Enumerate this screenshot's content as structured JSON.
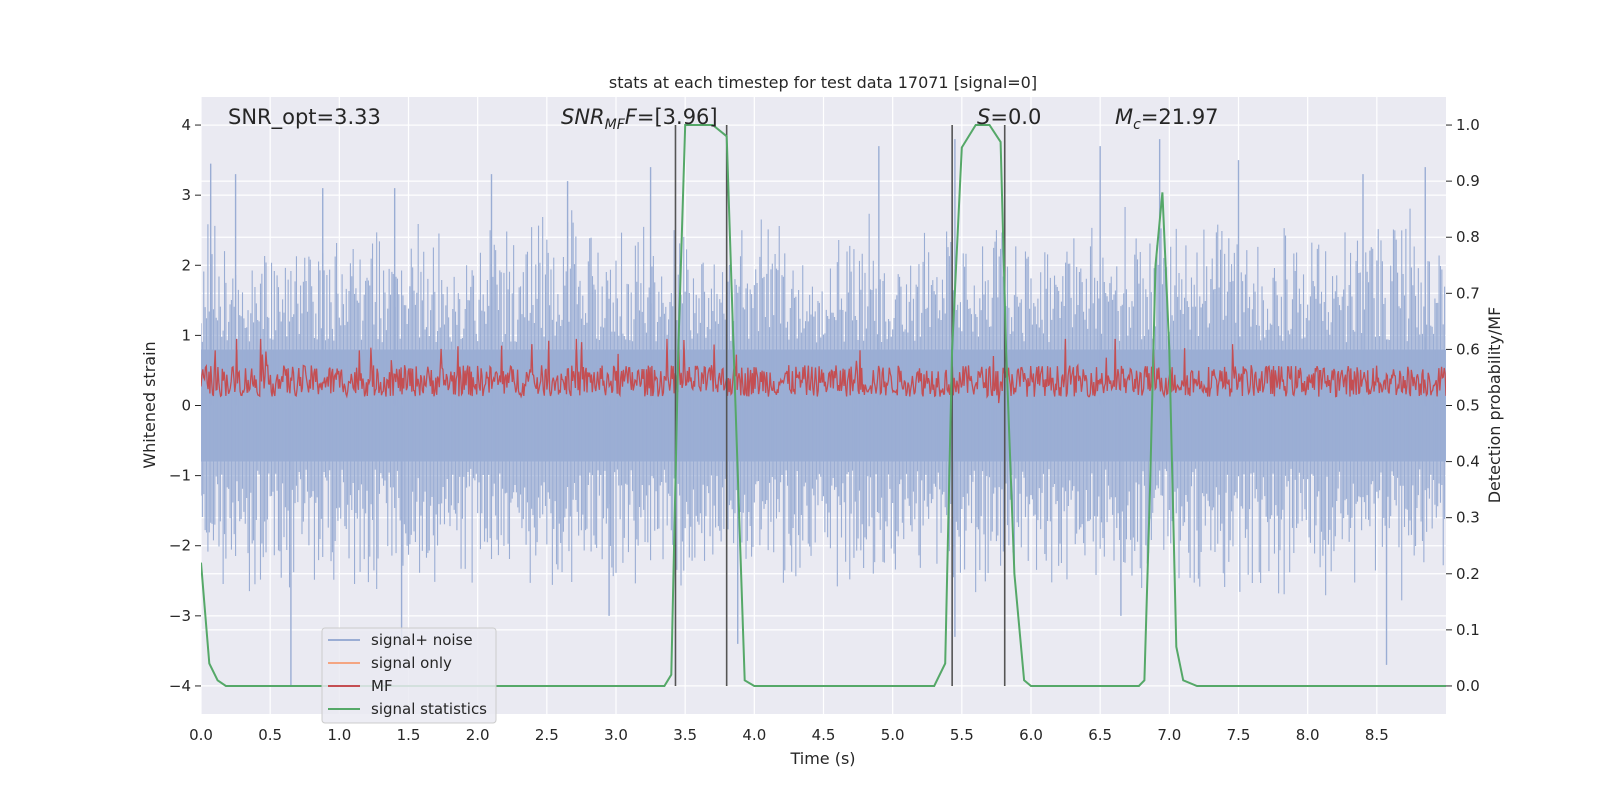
{
  "chart_data": {
    "type": "line",
    "title": "stats at each timestep for test data 17071 [signal=0]",
    "xlabel": "Time (s)",
    "ylabel": "Whitened strain",
    "ylabel_right": "Detection probability/MF",
    "xlim": [
      0,
      9
    ],
    "ylim": [
      -4.4,
      4.4
    ],
    "ylim_right": [
      -0.05,
      1.05
    ],
    "x_ticks": [
      0.0,
      0.5,
      1.0,
      1.5,
      2.0,
      2.5,
      3.0,
      3.5,
      4.0,
      4.5,
      5.0,
      5.5,
      6.0,
      6.5,
      7.0,
      7.5,
      8.0,
      8.5
    ],
    "x_tick_labels": [
      "0.0",
      "0.5",
      "1.0",
      "1.5",
      "2.0",
      "2.5",
      "3.0",
      "3.5",
      "4.0",
      "4.5",
      "5.0",
      "5.5",
      "6.0",
      "6.5",
      "7.0",
      "7.5",
      "8.0",
      "8.5"
    ],
    "y_ticks": [
      4,
      3,
      2,
      1,
      0,
      -1,
      -2,
      -3,
      -4
    ],
    "y_tick_labels": [
      "4",
      "3",
      "2",
      "1",
      "0",
      "−1",
      "−2",
      "−3",
      "−4"
    ],
    "y_right_ticks": [
      1.0,
      0.9,
      0.8,
      0.7,
      0.6,
      0.5,
      0.4,
      0.3,
      0.2,
      0.1,
      0.0
    ],
    "y_right_tick_labels": [
      "1.0",
      "0.9",
      "0.8",
      "0.7",
      "0.6",
      "0.5",
      "0.4",
      "0.3",
      "0.2",
      "0.1",
      "0.0"
    ],
    "grid": true,
    "legend_position": "lower-left",
    "annotations": {
      "snr_opt": "SNR_opt=3.33",
      "snr_mf_main": "SNR",
      "snr_mf_sub": "MF",
      "snr_mf_rest": "=[3.96]",
      "s_main": "S",
      "s_rest": "=0.0",
      "mc_main": "M",
      "mc_sub": "c",
      "mc_rest": "=21.97"
    },
    "vertical_lines_x": [
      3.43,
      3.8,
      5.43,
      5.81
    ],
    "series": [
      {
        "name": "signal+ noise",
        "color": "#9aadd4",
        "summary": {
          "envelope_typical": [
            -1.6,
            1.6
          ],
          "spikes_max": 3.8,
          "spikes_min": -4.0
        },
        "spikes": [
          [
            0.07,
            3.45
          ],
          [
            0.25,
            3.3
          ],
          [
            0.65,
            -4.0
          ],
          [
            0.88,
            3.1
          ],
          [
            1.4,
            3.1
          ],
          [
            1.45,
            -3.4
          ],
          [
            2.1,
            3.3
          ],
          [
            2.65,
            3.2
          ],
          [
            2.95,
            -3.0
          ],
          [
            3.25,
            3.4
          ],
          [
            3.8,
            3.6
          ],
          [
            3.88,
            -3.4
          ],
          [
            4.9,
            3.7
          ],
          [
            5.45,
            3.8
          ],
          [
            5.45,
            -3.3
          ],
          [
            6.5,
            3.7
          ],
          [
            6.65,
            -3.0
          ],
          [
            6.93,
            3.8
          ],
          [
            7.5,
            3.5
          ],
          [
            8.4,
            3.3
          ],
          [
            8.57,
            -3.7
          ],
          [
            8.85,
            3.4
          ]
        ]
      },
      {
        "name": "signal only",
        "color": "#f4a582"
      },
      {
        "name": "MF",
        "color": "#c44e52",
        "summary": {
          "level_mean": 0.35,
          "range": [
            0.0,
            0.95
          ]
        }
      },
      {
        "name": "signal statistics",
        "color": "#55a868",
        "x": [
          0.0,
          0.06,
          0.12,
          0.18,
          0.3,
          1.0,
          2.0,
          3.0,
          3.35,
          3.4,
          3.45,
          3.5,
          3.7,
          3.8,
          3.85,
          3.93,
          4.0,
          5.0,
          5.3,
          5.38,
          5.43,
          5.5,
          5.6,
          5.7,
          5.78,
          5.82,
          5.88,
          5.95,
          6.0,
          6.5,
          6.78,
          6.82,
          6.86,
          6.9,
          6.95,
          7.0,
          7.05,
          7.1,
          7.2,
          7.5,
          9.0
        ],
        "y": [
          0.22,
          0.04,
          0.01,
          0.0,
          0.0,
          0.0,
          0.0,
          0.0,
          0.0,
          0.02,
          0.6,
          1.0,
          1.0,
          0.98,
          0.6,
          0.01,
          0.0,
          0.0,
          0.0,
          0.04,
          0.6,
          0.96,
          1.0,
          1.0,
          0.97,
          0.6,
          0.2,
          0.01,
          0.0,
          0.0,
          0.0,
          0.01,
          0.35,
          0.75,
          0.88,
          0.6,
          0.07,
          0.01,
          0.0,
          0.0,
          0.0
        ]
      }
    ]
  }
}
